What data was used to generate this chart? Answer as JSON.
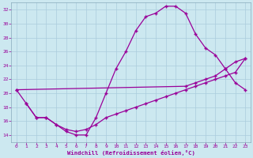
{
  "xlabel": "Windchill (Refroidissement éolien,°C)",
  "bg_color": "#cce8f0",
  "grid_color": "#aaccdd",
  "line_color": "#990099",
  "xlim": [
    -0.5,
    23.5
  ],
  "ylim": [
    13,
    33
  ],
  "yticks": [
    14,
    16,
    18,
    20,
    22,
    24,
    26,
    28,
    30,
    32
  ],
  "xticks": [
    0,
    1,
    2,
    3,
    4,
    5,
    6,
    7,
    8,
    9,
    10,
    11,
    12,
    13,
    14,
    15,
    16,
    17,
    18,
    19,
    20,
    21,
    22,
    23
  ],
  "line1_x": [
    0,
    1,
    2,
    3,
    4,
    5,
    6,
    7,
    8,
    9,
    10,
    11,
    12,
    13,
    14,
    15,
    16,
    17,
    18,
    19,
    20,
    21,
    22,
    23
  ],
  "line1_y": [
    20.5,
    18.5,
    16.5,
    16.5,
    15.5,
    14.5,
    14.0,
    14.0,
    16.5,
    20.0,
    23.5,
    26.0,
    29.0,
    31.0,
    31.5,
    32.5,
    32.5,
    31.5,
    28.5,
    26.5,
    25.5,
    23.5,
    21.5,
    20.5
  ],
  "line2_x": [
    0,
    17,
    18,
    19,
    20,
    21,
    22,
    23
  ],
  "line2_y": [
    20.5,
    21.0,
    21.5,
    22.0,
    22.5,
    23.5,
    24.5,
    25.0
  ],
  "line3_x": [
    1,
    2,
    3,
    4,
    5,
    6,
    7,
    8,
    9,
    10,
    11,
    12,
    13,
    14,
    15,
    16,
    17,
    18,
    19,
    20,
    21,
    22,
    23
  ],
  "line3_y": [
    18.5,
    16.5,
    16.5,
    15.5,
    14.8,
    14.5,
    14.8,
    15.5,
    16.5,
    17.0,
    17.5,
    18.0,
    18.5,
    19.0,
    19.5,
    20.0,
    20.5,
    21.0,
    21.5,
    22.0,
    22.5,
    23.0,
    25.0
  ]
}
